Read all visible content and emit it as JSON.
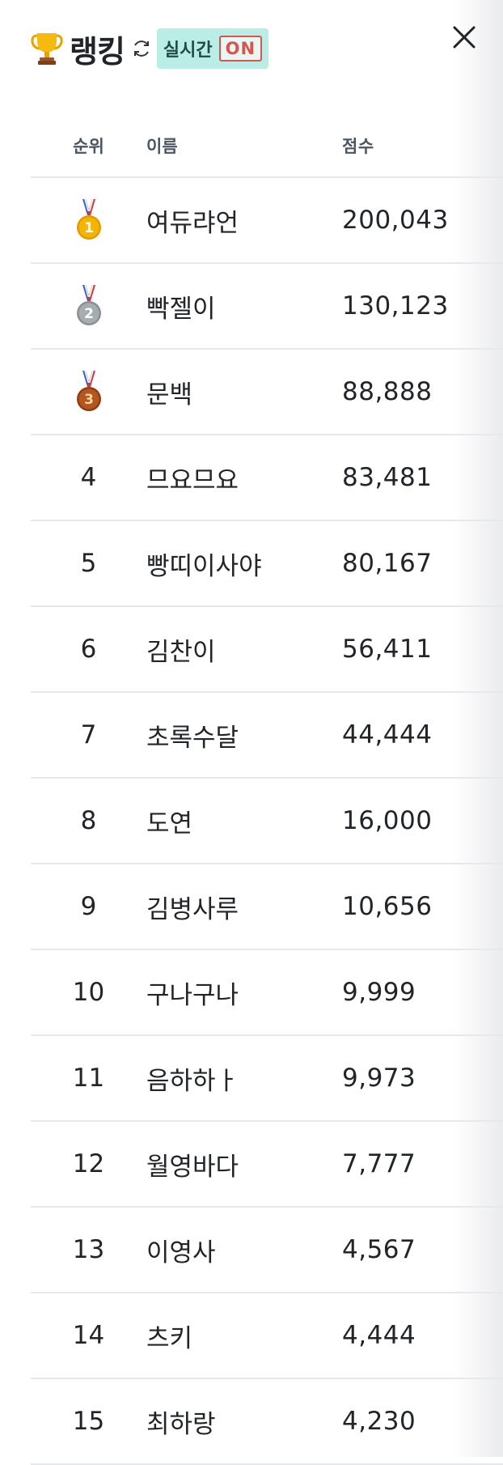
{
  "header": {
    "trophy_icon": "trophy-icon",
    "title": "랭킹",
    "refresh_icon": "refresh-icon",
    "live_label": "실시간",
    "live_status": "ON",
    "close_icon": "close-icon"
  },
  "colors": {
    "badge_bg": "#b9ede6",
    "on_red": "#d9534f",
    "gold": "#f5b400",
    "silver": "#9ea3a8",
    "bronze": "#b5551f"
  },
  "table": {
    "columns": {
      "rank": "순위",
      "name": "이름",
      "score": "점수"
    },
    "rows": [
      {
        "rank": "1",
        "medal": "gold-medal-icon",
        "name": "여듀랴언",
        "score": "200,043"
      },
      {
        "rank": "2",
        "medal": "silver-medal-icon",
        "name": "빡젤이",
        "score": "130,123"
      },
      {
        "rank": "3",
        "medal": "bronze-medal-icon",
        "name": "문백",
        "score": "88,888"
      },
      {
        "rank": "4",
        "name": "므요므요",
        "score": "83,481"
      },
      {
        "rank": "5",
        "name": "빵띠이사야",
        "score": "80,167"
      },
      {
        "rank": "6",
        "name": "김찬이",
        "score": "56,411"
      },
      {
        "rank": "7",
        "name": "초록수달",
        "score": "44,444"
      },
      {
        "rank": "8",
        "name": "도연",
        "score": "16,000"
      },
      {
        "rank": "9",
        "name": "김병사루",
        "score": "10,656"
      },
      {
        "rank": "10",
        "name": "구나구나",
        "score": "9,999"
      },
      {
        "rank": "11",
        "name": "음하하ㅏ",
        "score": "9,973"
      },
      {
        "rank": "12",
        "name": "월영바다",
        "score": "7,777"
      },
      {
        "rank": "13",
        "name": "이영사",
        "score": "4,567"
      },
      {
        "rank": "14",
        "name": "츠키",
        "score": "4,444"
      },
      {
        "rank": "15",
        "name": "최하랑",
        "score": "4,230"
      }
    ]
  }
}
